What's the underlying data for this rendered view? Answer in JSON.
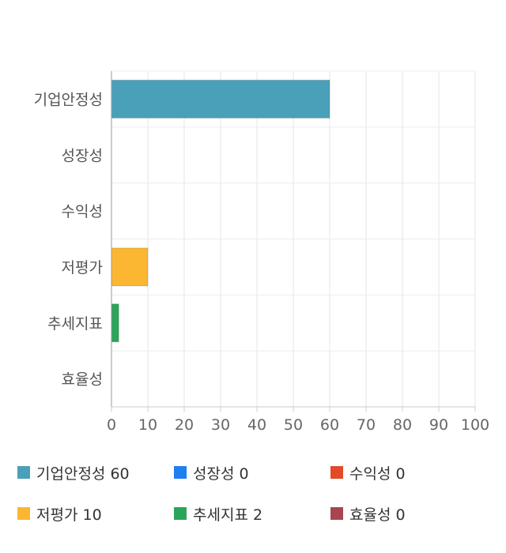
{
  "chart_data": {
    "type": "bar",
    "orientation": "horizontal",
    "categories": [
      "기업안정성",
      "성장성",
      "수익성",
      "저평가",
      "추세지표",
      "효율성"
    ],
    "values": [
      60,
      0,
      0,
      10,
      2,
      0
    ],
    "colors": [
      "#4aa0b8",
      "#1e7ff0",
      "#e24a2a",
      "#fbb732",
      "#2aa55a",
      "#a84550"
    ],
    "xlim": [
      0,
      100
    ],
    "xticks": [
      0,
      10,
      20,
      30,
      40,
      50,
      60,
      70,
      80,
      90,
      100
    ],
    "grid": true,
    "legend_position": "bottom",
    "legend": [
      {
        "label": "기업안정성 60",
        "color": "#4aa0b8"
      },
      {
        "label": "성장성 0",
        "color": "#1e7ff0"
      },
      {
        "label": "수익성 0",
        "color": "#e24a2a"
      },
      {
        "label": "저평가 10",
        "color": "#fbb732"
      },
      {
        "label": "추세지표 2",
        "color": "#2aa55a"
      },
      {
        "label": "효율성 0",
        "color": "#a84550"
      }
    ]
  }
}
